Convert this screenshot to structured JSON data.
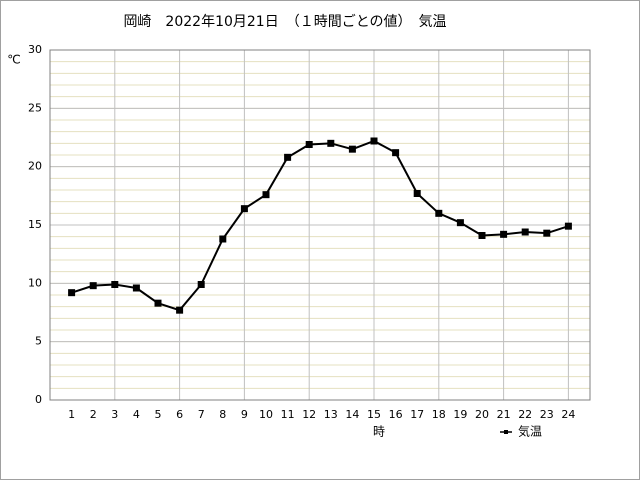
{
  "chart_data": {
    "type": "line",
    "title": "岡崎　2022年10月21日　（１時間ごとの値）　気温",
    "ylabel": "℃",
    "xlabel": "時",
    "x": [
      1,
      2,
      3,
      4,
      5,
      6,
      7,
      8,
      9,
      10,
      11,
      12,
      13,
      14,
      15,
      16,
      17,
      18,
      19,
      20,
      21,
      22,
      23,
      24
    ],
    "xlim": [
      0,
      25
    ],
    "xticks": [
      1,
      2,
      3,
      4,
      5,
      6,
      7,
      8,
      9,
      10,
      11,
      12,
      13,
      14,
      15,
      16,
      17,
      18,
      19,
      20,
      21,
      22,
      23,
      24
    ],
    "ylim": [
      0,
      30
    ],
    "yticks": [
      0,
      5,
      10,
      15,
      20,
      25,
      30
    ],
    "grid": true,
    "legend": "bottom-right",
    "series": [
      {
        "name": "気温",
        "color": "#000000",
        "values": [
          9.2,
          9.8,
          9.9,
          9.6,
          8.3,
          7.7,
          9.9,
          13.8,
          16.4,
          17.6,
          20.8,
          21.9,
          22.0,
          21.5,
          22.2,
          21.2,
          17.7,
          16.0,
          15.2,
          14.1,
          14.2,
          14.4,
          14.3,
          14.9
        ]
      }
    ]
  }
}
